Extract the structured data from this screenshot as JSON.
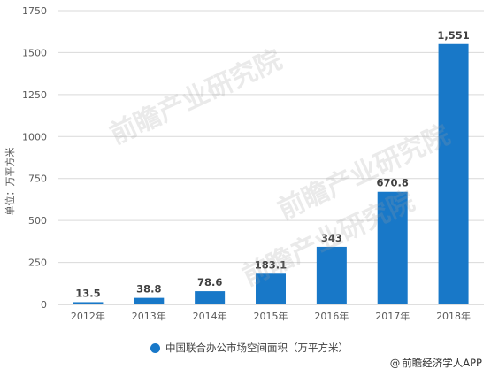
{
  "chart_data": {
    "type": "bar",
    "categories": [
      "2012年",
      "2013年",
      "2014年",
      "2015年",
      "2016年",
      "2017年",
      "2018年"
    ],
    "series": [
      {
        "name": "中国联合办公市场空间面积（万平方米）",
        "values": [
          13.5,
          38.8,
          78.6,
          183.1,
          343,
          670.8,
          1551
        ],
        "labels": [
          "13.5",
          "38.8",
          "78.6",
          "183.1",
          "343",
          "670.8",
          "1,551"
        ]
      }
    ],
    "ylabel": "单位：万平方米",
    "xlabel": "",
    "ylim": [
      0,
      1750
    ],
    "yticks": [
      0,
      250,
      500,
      750,
      1000,
      1250,
      1500,
      1750
    ],
    "grid": true,
    "legend_position": "bottom",
    "colors": {
      "bar": "#1878C8",
      "grid": "#D9D9D9",
      "axis": "#BFBFBF"
    }
  },
  "credit": {
    "icon": "copyright-icon",
    "symbol": "@",
    "text": "前瞻经济学人APP"
  },
  "watermarks": [
    "前瞻产业研究院",
    "前瞻产业研究院",
    "前瞻产业研究院"
  ]
}
